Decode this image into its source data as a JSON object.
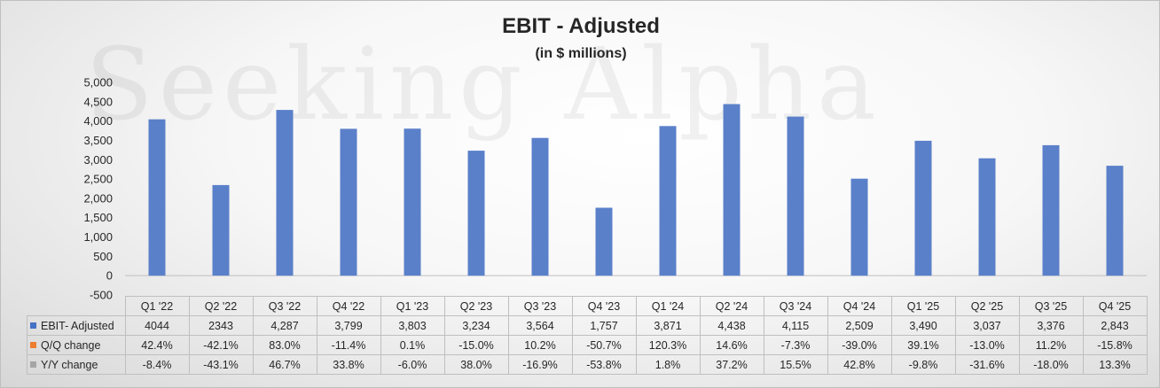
{
  "chart_data": {
    "type": "bar",
    "title": "EBIT - Adjusted",
    "subtitle": "(in $ millions)",
    "watermark": "Seeking Alpha",
    "categories": [
      "Q1 '22",
      "Q2 '22",
      "Q3 '22",
      "Q4 '22",
      "Q1 '23",
      "Q2 '23",
      "Q3 '23",
      "Q4 '23",
      "Q1 '24",
      "Q2 '24",
      "Q3 '24",
      "Q4 '24",
      "Q1 '25",
      "Q2 '25",
      "Q3 '25",
      "Q4 '25"
    ],
    "values": [
      4044,
      2343,
      4287,
      3799,
      3803,
      3234,
      3564,
      1757,
      3871,
      4438,
      4115,
      2509,
      3490,
      3037,
      3376,
      2843
    ],
    "ylim": [
      -500,
      5000
    ],
    "yticks": [
      -500,
      0,
      500,
      1000,
      1500,
      2000,
      2500,
      3000,
      3500,
      4000,
      4500,
      5000
    ],
    "ytick_labels": [
      "-500",
      "0",
      "500",
      "1,000",
      "1,500",
      "2,000",
      "2,500",
      "3,000",
      "3,500",
      "4,000",
      "4,500",
      "5,000"
    ],
    "bar_color": "#5b80ca",
    "data_table": [
      {
        "label": "EBIT- Adjusted",
        "key_color": "#4472c4",
        "cells": [
          "4044",
          "2343",
          "4,287",
          "3,799",
          "3,803",
          "3,234",
          "3,564",
          "1,757",
          "3,871",
          "4,438",
          "4,115",
          "2,509",
          "3,490",
          "3,037",
          "3,376",
          "2,843"
        ]
      },
      {
        "label": "Q/Q change",
        "key_color": "#ed7d31",
        "cells": [
          "42.4%",
          "-42.1%",
          "83.0%",
          "-11.4%",
          "0.1%",
          "-15.0%",
          "10.2%",
          "-50.7%",
          "120.3%",
          "14.6%",
          "-7.3%",
          "-39.0%",
          "39.1%",
          "-13.0%",
          "11.2%",
          "-15.8%"
        ]
      },
      {
        "label": "Y/Y change",
        "key_color": "#a5a5a5",
        "cells": [
          "-8.4%",
          "-43.1%",
          "46.7%",
          "33.8%",
          "-6.0%",
          "38.0%",
          "-16.9%",
          "-53.8%",
          "1.8%",
          "37.2%",
          "15.5%",
          "42.8%",
          "-9.8%",
          "-31.6%",
          "-18.0%",
          "13.3%"
        ]
      }
    ]
  }
}
